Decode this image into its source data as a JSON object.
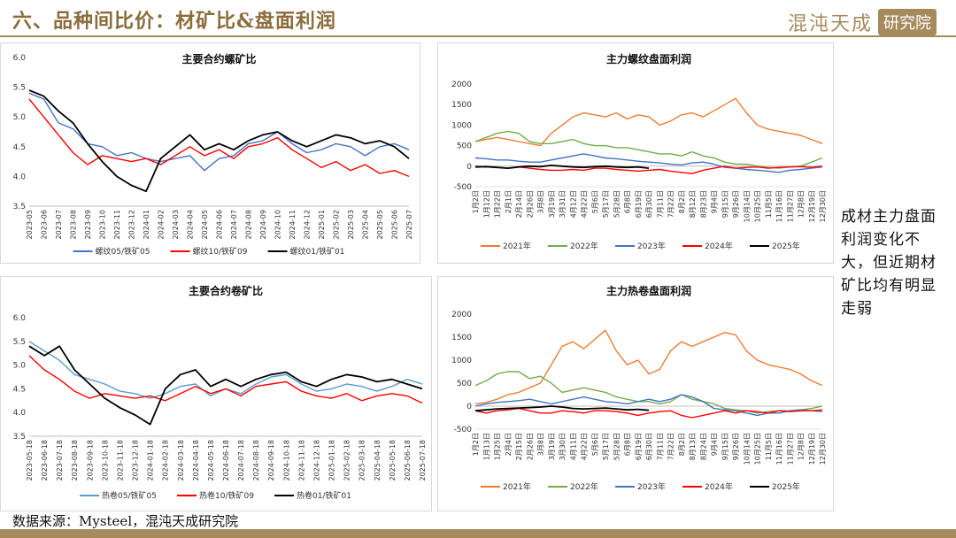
{
  "slide": {
    "title": "六、品种间比价：材矿比&盘面利润",
    "logo_brand": "混沌天成",
    "logo_institute": "研究院",
    "note": "成材主力盘面利润变化不大，但近期材矿比均有明显走弱",
    "source": "数据来源：Mysteel，混沌天成研究院",
    "colors": {
      "accent": "#a58a5c",
      "title": "#8a6d3b"
    }
  },
  "chart_data": [
    {
      "id": "rebar_ratio",
      "type": "line",
      "title": "主要合约螺矿比",
      "ylim": [
        3.5,
        6.0
      ],
      "yticks": [
        "3.5",
        "4.0",
        "4.5",
        "5.0",
        "5.5",
        "6.0"
      ],
      "ytick_values": [
        3.5,
        4.0,
        4.5,
        5.0,
        5.5,
        6.0
      ],
      "x_labels": [
        "2023-05",
        "2023-06",
        "2023-07",
        "2023-08",
        "2023-09",
        "2023-10",
        "2023-11",
        "2023-12",
        "2024-01",
        "2024-02",
        "2024-03",
        "2024-04",
        "2024-05",
        "2024-06",
        "2024-07",
        "2024-08",
        "2024-09",
        "2024-10",
        "2024-11",
        "2024-12",
        "2025-01",
        "2025-02",
        "2025-03",
        "2025-04",
        "2025-05",
        "2025-06",
        "2025-07"
      ],
      "grid": false,
      "legend_position": "bottom",
      "series": [
        {
          "name": "螺纹05/铁矿05",
          "color": "#4472c4",
          "values": [
            5.4,
            5.3,
            4.9,
            4.8,
            4.55,
            4.5,
            4.35,
            4.4,
            4.3,
            4.25,
            4.3,
            4.35,
            4.1,
            4.3,
            4.35,
            4.55,
            4.6,
            4.75,
            4.55,
            4.4,
            4.45,
            4.55,
            4.5,
            4.35,
            4.5,
            4.55,
            4.45
          ]
        },
        {
          "name": "螺纹10/铁矿09",
          "color": "#ff0000",
          "values": [
            5.3,
            5.0,
            4.7,
            4.4,
            4.2,
            4.35,
            4.3,
            4.25,
            4.3,
            4.2,
            4.35,
            4.5,
            4.35,
            4.45,
            4.3,
            4.5,
            4.55,
            4.65,
            4.45,
            4.3,
            4.15,
            4.25,
            4.1,
            4.2,
            4.05,
            4.1,
            4.0
          ]
        },
        {
          "name": "螺纹01/铁矿01",
          "color": "#000000",
          "values": [
            5.45,
            5.35,
            5.1,
            4.9,
            4.55,
            4.25,
            4.0,
            3.85,
            3.75,
            4.3,
            4.5,
            4.7,
            4.45,
            4.55,
            4.45,
            4.6,
            4.7,
            4.75,
            4.6,
            4.5,
            4.6,
            4.7,
            4.65,
            4.55,
            4.6,
            4.5,
            4.3
          ]
        }
      ]
    },
    {
      "id": "rebar_profit",
      "type": "line",
      "title": "主力螺纹盘面利润",
      "ylim": [
        -500,
        2000
      ],
      "yticks": [
        "-500",
        "0",
        "500",
        "1000",
        "1500",
        "2000"
      ],
      "ytick_values": [
        -500,
        0,
        500,
        1000,
        1500,
        2000
      ],
      "x_labels": [
        "1月2日",
        "1月12日",
        "1月22日",
        "2月1日",
        "2月14日",
        "2月26日",
        "3月8日",
        "3月19日",
        "3月31日",
        "4月12日",
        "4月22日",
        "5月6日",
        "5月17日",
        "5月28日",
        "6月8日",
        "6月19日",
        "6月30日",
        "7月11日",
        "7月22日",
        "8月2日",
        "8月12日",
        "8月23日",
        "9月4日",
        "9月15日",
        "9月26日",
        "10月14日",
        "10月25日",
        "11月5日",
        "11月16日",
        "11月27日",
        "12月8日",
        "12月19日",
        "12月30日"
      ],
      "grid": false,
      "legend_position": "bottom",
      "series": [
        {
          "name": "2021年",
          "color": "#ed7d31",
          "values": [
            600,
            650,
            700,
            650,
            600,
            550,
            500,
            800,
            1000,
            1200,
            1300,
            1250,
            1200,
            1300,
            1150,
            1250,
            1200,
            1000,
            1100,
            1250,
            1300,
            1200,
            1350,
            1500,
            1650,
            1300,
            1000,
            900,
            850,
            800,
            750,
            650,
            550
          ]
        },
        {
          "name": "2022年",
          "color": "#70ad47",
          "values": [
            600,
            700,
            800,
            850,
            800,
            600,
            550,
            550,
            600,
            650,
            550,
            500,
            500,
            450,
            450,
            400,
            350,
            300,
            300,
            250,
            350,
            250,
            200,
            100,
            50,
            50,
            0,
            -30,
            -50,
            -20,
            0,
            100,
            200
          ]
        },
        {
          "name": "2023年",
          "color": "#4472c4",
          "values": [
            200,
            180,
            150,
            150,
            120,
            100,
            100,
            150,
            200,
            250,
            300,
            250,
            200,
            180,
            150,
            120,
            100,
            80,
            50,
            30,
            80,
            100,
            50,
            -30,
            -50,
            -80,
            -100,
            -120,
            -150,
            -100,
            -80,
            -50,
            -20
          ]
        },
        {
          "name": "2024年",
          "color": "#ff0000",
          "values": [
            0,
            -20,
            -30,
            -50,
            -20,
            -50,
            -80,
            -100,
            -100,
            -80,
            -100,
            -50,
            -50,
            -80,
            -100,
            -120,
            -100,
            -80,
            -120,
            -150,
            -180,
            -100,
            -50,
            0,
            -50,
            -30,
            -20,
            -50,
            -30,
            -20,
            -10,
            -30,
            0
          ]
        },
        {
          "name": "2025年",
          "color": "#000000",
          "values": [
            -20,
            -10,
            -30,
            -50,
            -20,
            0,
            -10,
            20,
            0,
            -20,
            -30,
            -10,
            0,
            -20,
            -30,
            -20,
            -50,
            null,
            null,
            null,
            null,
            null,
            null,
            null,
            null,
            null,
            null,
            null,
            null,
            null,
            null,
            null,
            null
          ]
        }
      ]
    },
    {
      "id": "hrc_ratio",
      "type": "line",
      "title": "主要合约卷矿比",
      "ylim": [
        3.5,
        6.0
      ],
      "yticks": [
        "3.5",
        "4.0",
        "4.5",
        "5.0",
        "5.5",
        "6.0"
      ],
      "ytick_values": [
        3.5,
        4.0,
        4.5,
        5.0,
        5.5,
        6.0
      ],
      "x_labels": [
        "2023-05-18",
        "2023-06-18",
        "2023-07-18",
        "2023-08-18",
        "2023-09-18",
        "2023-10-18",
        "2023-11-18",
        "2023-12-18",
        "2024-01-18",
        "2024-02-18",
        "2024-03-18",
        "2024-04-18",
        "2024-05-18",
        "2024-06-18",
        "2024-07-18",
        "2024-08-18",
        "2024-09-18",
        "2024-10-18",
        "2024-11-18",
        "2024-12-18",
        "2025-01-18",
        "2025-02-18",
        "2025-03-18",
        "2025-04-18",
        "2025-05-18",
        "2025-06-18",
        "2025-07-18"
      ],
      "grid": false,
      "legend_position": "bottom",
      "series": [
        {
          "name": "热卷05/铁矿05",
          "color": "#5b9bd5",
          "values": [
            5.5,
            5.3,
            5.1,
            4.8,
            4.7,
            4.6,
            4.45,
            4.4,
            4.3,
            4.4,
            4.55,
            4.6,
            4.35,
            4.5,
            4.4,
            4.6,
            4.75,
            4.8,
            4.6,
            4.45,
            4.5,
            4.6,
            4.55,
            4.45,
            4.55,
            4.7,
            4.6
          ]
        },
        {
          "name": "热卷10/铁矿09",
          "color": "#ff0000",
          "values": [
            5.2,
            4.9,
            4.7,
            4.45,
            4.3,
            4.4,
            4.35,
            4.3,
            4.35,
            4.25,
            4.4,
            4.55,
            4.4,
            4.5,
            4.35,
            4.55,
            4.6,
            4.65,
            4.45,
            4.35,
            4.3,
            4.4,
            4.25,
            4.35,
            4.4,
            4.35,
            4.2
          ]
        },
        {
          "name": "热卷01/铁矿01",
          "color": "#000000",
          "values": [
            5.4,
            5.2,
            5.4,
            4.9,
            4.6,
            4.3,
            4.1,
            3.95,
            3.75,
            4.5,
            4.8,
            4.9,
            4.55,
            4.7,
            4.55,
            4.7,
            4.8,
            4.85,
            4.65,
            4.55,
            4.7,
            4.8,
            4.75,
            4.65,
            4.7,
            4.6,
            4.5
          ]
        }
      ]
    },
    {
      "id": "hrc_profit",
      "type": "line",
      "title": "主力热卷盘面利润",
      "ylim": [
        -500,
        2000
      ],
      "yticks": [
        "-500",
        "0",
        "500",
        "1000",
        "1500",
        "2000"
      ],
      "ytick_values": [
        -500,
        0,
        500,
        1000,
        1500,
        2000
      ],
      "x_labels": [
        "1月2日",
        "1月13日",
        "1月25日",
        "2月4日",
        "2月15日",
        "2月26日",
        "3月8日",
        "3月19日",
        "3月30日",
        "4月11日",
        "4月22日",
        "5月6日",
        "5月17日",
        "5月28日",
        "6月8日",
        "6月19日",
        "6月30日",
        "7月11日",
        "7月22日",
        "8月2日",
        "8月13日",
        "8月24日",
        "9月4日",
        "9月15日",
        "9月26日",
        "10月14日",
        "10月25日",
        "11月5日",
        "11月16日",
        "11月27日",
        "12月8日",
        "12月19日",
        "12月30日"
      ],
      "grid": false,
      "legend_position": "bottom",
      "series": [
        {
          "name": "2021年",
          "color": "#ed7d31",
          "values": [
            50,
            80,
            150,
            250,
            300,
            400,
            500,
            900,
            1300,
            1400,
            1250,
            1450,
            1650,
            1200,
            900,
            1000,
            700,
            800,
            1200,
            1400,
            1300,
            1400,
            1500,
            1600,
            1550,
            1200,
            1000,
            900,
            850,
            800,
            700,
            550,
            450
          ]
        },
        {
          "name": "2022年",
          "color": "#70ad47",
          "values": [
            450,
            550,
            700,
            750,
            750,
            600,
            650,
            500,
            300,
            350,
            400,
            350,
            300,
            200,
            150,
            100,
            100,
            50,
            100,
            250,
            150,
            100,
            50,
            -50,
            -80,
            -100,
            -150,
            -120,
            -100,
            -100,
            -80,
            -50,
            0
          ]
        },
        {
          "name": "2023年",
          "color": "#4472c4",
          "values": [
            0,
            50,
            80,
            100,
            120,
            150,
            100,
            50,
            100,
            150,
            200,
            150,
            100,
            80,
            50,
            100,
            150,
            100,
            150,
            250,
            200,
            100,
            -50,
            -80,
            -100,
            -150,
            -200,
            -150,
            -150,
            -100,
            -80,
            -100,
            -120
          ]
        },
        {
          "name": "2024年",
          "color": "#ff0000",
          "values": [
            -100,
            -150,
            -100,
            -80,
            -50,
            -100,
            -150,
            -150,
            -100,
            -120,
            -150,
            -100,
            -100,
            -120,
            -150,
            -200,
            -150,
            -120,
            -100,
            -200,
            -250,
            -200,
            -150,
            -100,
            -150,
            -100,
            -120,
            -150,
            -100,
            -120,
            -100,
            -100,
            -80
          ]
        },
        {
          "name": "2025年",
          "color": "#000000",
          "values": [
            -100,
            -80,
            -60,
            -50,
            -40,
            -30,
            -20,
            0,
            -20,
            -50,
            -60,
            -50,
            -40,
            -60,
            -80,
            -70,
            -90,
            null,
            null,
            null,
            null,
            null,
            null,
            null,
            null,
            null,
            null,
            null,
            null,
            null,
            null,
            null,
            null
          ]
        }
      ]
    }
  ]
}
